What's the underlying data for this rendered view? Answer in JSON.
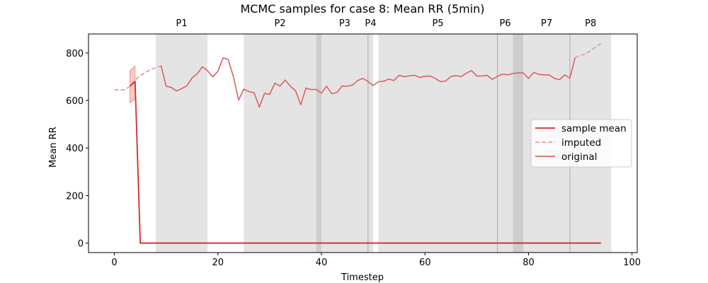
{
  "chart_data": {
    "type": "line",
    "title": "MCMC samples for case 8: Mean RR (5min)",
    "xlabel": "Timestep",
    "ylabel": "Mean RR",
    "xlim": [
      -5,
      101
    ],
    "ylim": [
      -40,
      880
    ],
    "x_ticks": [
      0,
      20,
      40,
      60,
      80,
      100
    ],
    "y_ticks": [
      0,
      200,
      400,
      600,
      800
    ],
    "grid": false,
    "legend_placement": "center-right",
    "colors": {
      "sample_mean": "#d62728",
      "imputed": "#e8a0a0",
      "original": "#e06060",
      "band": "#f4bcbc",
      "period_shade": "#d9d9d9"
    },
    "periods": [
      {
        "label": "P1",
        "start": 8,
        "end": 18
      },
      {
        "label": "P2",
        "start": 25,
        "end": 39
      },
      {
        "label": "P3",
        "start": 40,
        "end": 49
      },
      {
        "label": "P4",
        "start": 49,
        "end": 50
      },
      {
        "label": "P5",
        "start": 51,
        "end": 74
      },
      {
        "label": "P6",
        "start": 74,
        "end": 77
      },
      {
        "label": "P7",
        "start": 79,
        "end": 88
      },
      {
        "label": "P8",
        "start": 88,
        "end": 96
      }
    ],
    "overlaps": [
      {
        "start": 39,
        "end": 40
      },
      {
        "start": 77,
        "end": 79
      }
    ],
    "boundaries": [
      49,
      74,
      88
    ],
    "series": [
      {
        "name": "sample mean",
        "style": "solid",
        "x": [
          3,
          4,
          5,
          94
        ],
        "y": [
          660,
          680,
          0,
          0
        ]
      },
      {
        "name": "imputed",
        "style": "dashed",
        "segments": [
          {
            "x": [
              0,
              1,
              2,
              3,
              4,
              5,
              6,
              7,
              8,
              9
            ],
            "y": [
              645,
              645,
              645,
              660,
              685,
              705,
              718,
              730,
              738,
              745
            ]
          },
          {
            "x": [
              89,
              90,
              91,
              92,
              93,
              94
            ],
            "y": [
              780,
              790,
              795,
              810,
              825,
              840
            ]
          }
        ]
      },
      {
        "name": "original",
        "style": "solid",
        "x": [
          9,
          10,
          11,
          12,
          13,
          14,
          15,
          16,
          17,
          18,
          19,
          20,
          21,
          22,
          23,
          24,
          25,
          26,
          27,
          28,
          29,
          30,
          31,
          32,
          33,
          34,
          35,
          36,
          37,
          38,
          39,
          40,
          41,
          42,
          43,
          44,
          45,
          46,
          47,
          48,
          49,
          50,
          51,
          52,
          53,
          54,
          55,
          56,
          57,
          58,
          59,
          60,
          61,
          62,
          63,
          64,
          65,
          66,
          67,
          68,
          69,
          70,
          71,
          72,
          73,
          74,
          75,
          76,
          77,
          78,
          79,
          80,
          81,
          82,
          83,
          84,
          85,
          86,
          87,
          88,
          89
        ],
        "y": [
          748,
          660,
          655,
          640,
          650,
          662,
          695,
          712,
          742,
          725,
          700,
          723,
          780,
          772,
          700,
          602,
          648,
          637,
          633,
          572,
          630,
          626,
          673,
          661,
          686,
          660,
          641,
          582,
          652,
          646,
          646,
          631,
          660,
          628,
          634,
          661,
          660,
          665,
          684,
          693,
          680,
          663,
          679,
          681,
          690,
          684,
          706,
          700,
          704,
          706,
          697,
          702,
          703,
          693,
          679,
          682,
          701,
          705,
          701,
          715,
          726,
          703,
          703,
          706,
          689,
          702,
          711,
          708,
          714,
          716,
          716,
          693,
          718,
          710,
          708,
          708,
          693,
          688,
          708,
          694,
          780
        ]
      }
    ],
    "band": {
      "x": [
        3,
        4
      ],
      "low": [
        590,
        605
      ],
      "high": [
        725,
        745
      ]
    }
  }
}
